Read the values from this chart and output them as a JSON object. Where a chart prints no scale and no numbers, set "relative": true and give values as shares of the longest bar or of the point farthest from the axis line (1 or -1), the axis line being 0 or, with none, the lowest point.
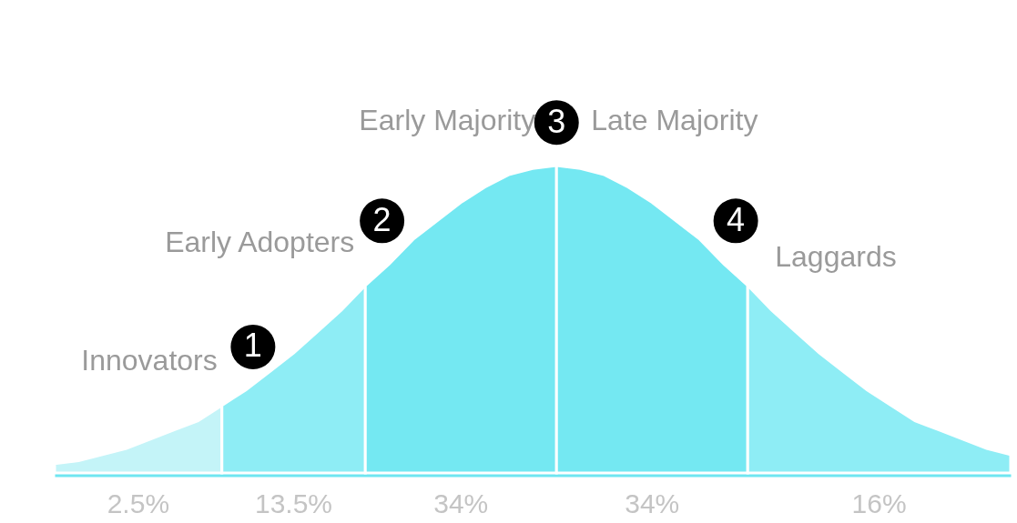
{
  "chart_data": {
    "type": "area",
    "relative": true,
    "legend": false,
    "grid": false,
    "categories": [
      null,
      null,
      null,
      null,
      null,
      null,
      null,
      null,
      null,
      null,
      null,
      null,
      null,
      null,
      null,
      null,
      null,
      null,
      null,
      null,
      null,
      null,
      null,
      null,
      null,
      null,
      null,
      null,
      null,
      null,
      null,
      null,
      null,
      null,
      null,
      null,
      null,
      null,
      null,
      null,
      null
    ],
    "series": [
      {
        "name": "Innovators",
        "color": "#c4f4f8",
        "values": [
          0.03,
          0.04,
          0.06,
          0.08,
          0.11,
          0.14,
          0.17,
          0.22,
          null,
          null,
          null,
          null,
          null,
          null,
          null,
          null,
          null,
          null,
          null,
          null,
          null,
          null,
          null,
          null,
          null,
          null,
          null,
          null,
          null,
          null,
          null,
          null,
          null,
          null,
          null,
          null,
          null,
          null,
          null,
          null,
          null
        ]
      },
      {
        "name": "Early Adopters",
        "color": "#8eedf5",
        "values": [
          null,
          null,
          null,
          null,
          null,
          null,
          null,
          0.22,
          0.27,
          0.33,
          0.39,
          0.46,
          0.53,
          0.61,
          null,
          null,
          null,
          null,
          null,
          null,
          null,
          null,
          null,
          null,
          null,
          null,
          null,
          null,
          null,
          null,
          null,
          null,
          null,
          null,
          null,
          null,
          null,
          null,
          null,
          null,
          null
        ]
      },
      {
        "name": "Early Majority",
        "color": "#74e8f2",
        "values": [
          null,
          null,
          null,
          null,
          null,
          null,
          null,
          null,
          null,
          null,
          null,
          null,
          null,
          0.61,
          0.68,
          0.76,
          0.82,
          0.88,
          0.93,
          0.97,
          0.99,
          1.0,
          null,
          null,
          null,
          null,
          null,
          null,
          null,
          null,
          null,
          null,
          null,
          null,
          null,
          null,
          null,
          null,
          null,
          null,
          null
        ]
      },
      {
        "name": "Late Majority",
        "color": "#74e8f2",
        "values": [
          null,
          null,
          null,
          null,
          null,
          null,
          null,
          null,
          null,
          null,
          null,
          null,
          null,
          null,
          null,
          null,
          null,
          null,
          null,
          null,
          null,
          1.0,
          0.99,
          0.97,
          0.93,
          0.88,
          0.82,
          0.76,
          0.68,
          0.61,
          null,
          null,
          null,
          null,
          null,
          null,
          null,
          null,
          null,
          null,
          null
        ]
      },
      {
        "name": "Laggards",
        "color": "#8eedf5",
        "values": [
          null,
          null,
          null,
          null,
          null,
          null,
          null,
          null,
          null,
          null,
          null,
          null,
          null,
          null,
          null,
          null,
          null,
          null,
          null,
          null,
          null,
          null,
          null,
          null,
          null,
          null,
          null,
          null,
          null,
          0.61,
          0.53,
          0.46,
          0.39,
          0.33,
          0.27,
          0.22,
          0.17,
          0.14,
          0.11,
          0.08,
          0.06
        ]
      }
    ],
    "annotations": [
      "2.5%",
      "13.5%",
      "34%",
      "34%",
      "16%",
      "1",
      "2",
      "3",
      "4"
    ]
  }
}
